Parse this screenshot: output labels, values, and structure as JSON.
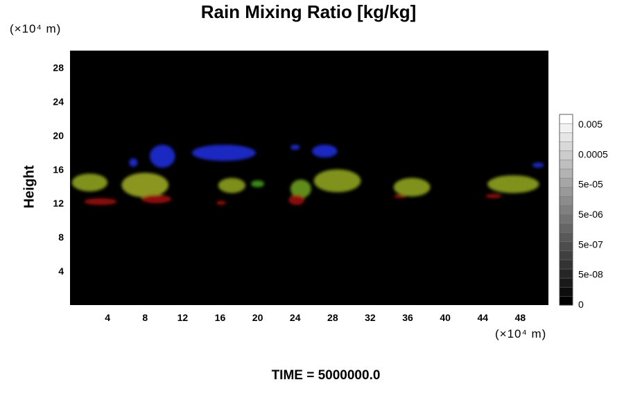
{
  "chart_data": {
    "type": "heatmap",
    "title": "Rain Mixing Ratio [kg/kg]",
    "xlabel": "",
    "ylabel": "Height",
    "x_unit": "(×10⁴ m)",
    "y_unit": "(×10⁴ m)",
    "xlim": [
      0,
      51
    ],
    "ylim": [
      0,
      30
    ],
    "xticks": [
      4,
      8,
      12,
      16,
      20,
      24,
      28,
      32,
      36,
      40,
      44,
      48
    ],
    "yticks": [
      4,
      8,
      12,
      16,
      20,
      24,
      28
    ],
    "background": "#000000",
    "colorbar": {
      "labels": [
        "0.005",
        "0.0005",
        "5e-05",
        "5e-06",
        "5e-07",
        "5e-08",
        "0"
      ],
      "levels": 21,
      "colors": [
        "#000000",
        "#ffffff"
      ]
    },
    "features": [
      {
        "kind": "ice-blue",
        "color": "#1f2bd6",
        "x": [
          6.3,
          7.2
        ],
        "y": [
          16.3,
          17.3
        ]
      },
      {
        "kind": "ice-blue",
        "color": "#1f2bd6",
        "x": [
          8.5,
          11.2
        ],
        "y": [
          16.2,
          18.9
        ]
      },
      {
        "kind": "ice-blue",
        "color": "#1f2bd6",
        "x": [
          13.0,
          19.8
        ],
        "y": [
          17.0,
          18.9
        ]
      },
      {
        "kind": "ice-blue",
        "color": "#1f2bd6",
        "x": [
          23.5,
          24.5
        ],
        "y": [
          18.3,
          18.9
        ]
      },
      {
        "kind": "ice-blue",
        "color": "#1f2bd6",
        "x": [
          25.8,
          28.5
        ],
        "y": [
          17.4,
          18.9
        ]
      },
      {
        "kind": "ice-blue",
        "color": "#1f2bd6",
        "x": [
          49.3,
          50.5
        ],
        "y": [
          16.2,
          16.8
        ]
      },
      {
        "kind": "mixed",
        "color": "#8ea21e",
        "x": [
          0.2,
          4.0
        ],
        "y": [
          13.4,
          15.5
        ]
      },
      {
        "kind": "mixed",
        "color": "#9aa623",
        "x": [
          5.5,
          10.5
        ],
        "y": [
          12.7,
          15.6
        ]
      },
      {
        "kind": "mixed",
        "color": "#8b9d1c",
        "x": [
          15.8,
          18.7
        ],
        "y": [
          13.2,
          15.0
        ]
      },
      {
        "kind": "mixed",
        "color": "#3f9a1a",
        "x": [
          19.3,
          20.7
        ],
        "y": [
          13.9,
          14.7
        ]
      },
      {
        "kind": "mixed",
        "color": "#6a9b1d",
        "x": [
          23.5,
          25.7
        ],
        "y": [
          12.6,
          14.8
        ]
      },
      {
        "kind": "mixed",
        "color": "#8ea21e",
        "x": [
          26.0,
          31.0
        ],
        "y": [
          13.3,
          16.0
        ]
      },
      {
        "kind": "mixed",
        "color": "#8ea21e",
        "x": [
          34.5,
          38.4
        ],
        "y": [
          12.8,
          15.0
        ]
      },
      {
        "kind": "mixed",
        "color": "#8ea21e",
        "x": [
          44.5,
          50.0
        ],
        "y": [
          13.2,
          15.3
        ]
      },
      {
        "kind": "rain-red",
        "color": "#9a1010",
        "x": [
          1.5,
          5.0
        ],
        "y": [
          11.8,
          12.6
        ]
      },
      {
        "kind": "rain-red",
        "color": "#9a1010",
        "x": [
          7.6,
          10.8
        ],
        "y": [
          12.0,
          13.0
        ]
      },
      {
        "kind": "rain-red",
        "color": "#9a1010",
        "x": [
          15.6,
          16.6
        ],
        "y": [
          11.8,
          12.3
        ]
      },
      {
        "kind": "rain-red",
        "color": "#9a1010",
        "x": [
          23.3,
          25.0
        ],
        "y": [
          11.8,
          13.0
        ]
      },
      {
        "kind": "rain-red",
        "color": "#9a1010",
        "x": [
          34.5,
          35.8
        ],
        "y": [
          12.6,
          13.0
        ]
      },
      {
        "kind": "rain-red",
        "color": "#9a1010",
        "x": [
          44.3,
          46.0
        ],
        "y": [
          12.6,
          13.1
        ]
      }
    ]
  },
  "footer": "TIME = 5000000.0"
}
